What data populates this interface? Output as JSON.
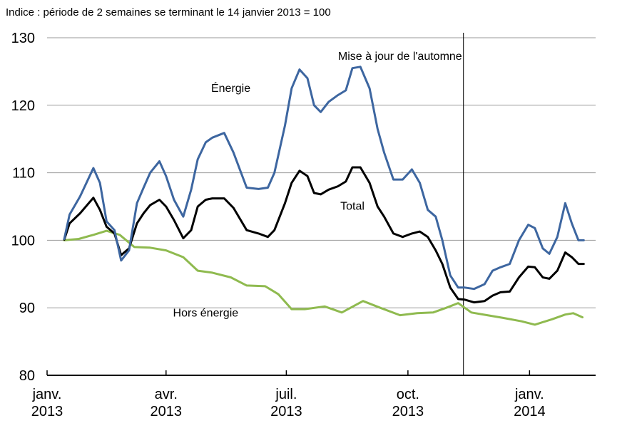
{
  "chart_data": {
    "type": "line",
    "subtitle": "Indice : période de 2 semaines se terminant le 14 janvier 2013 = 100",
    "ylim": [
      80,
      130
    ],
    "yticks": [
      80,
      90,
      100,
      110,
      120,
      130
    ],
    "grid": true,
    "xlim": [
      "2013-01-01",
      "2014-02-20"
    ],
    "xticks": [
      {
        "date": "2013-01-01",
        "line1": "janv.",
        "line2": "2013"
      },
      {
        "date": "2013-04-01",
        "line1": "avr.",
        "line2": "2013"
      },
      {
        "date": "2013-07-01",
        "line1": "juil.",
        "line2": "2013"
      },
      {
        "date": "2013-10-01",
        "line1": "oct.",
        "line2": "2013"
      },
      {
        "date": "2014-01-01",
        "line1": "janv.",
        "line2": "2014"
      }
    ],
    "vline": {
      "date": "2013-11-12",
      "label": "Mise à jour de l'automne"
    },
    "series": [
      {
        "name": "Énergie",
        "color": "#3d66a0",
        "x": [
          "2013-01-14",
          "2013-01-18",
          "2013-01-26",
          "2013-02-05",
          "2013-02-10",
          "2013-02-15",
          "2013-02-21",
          "2013-02-26",
          "2013-03-04",
          "2013-03-10",
          "2013-03-15",
          "2013-03-20",
          "2013-03-27",
          "2013-04-01",
          "2013-04-07",
          "2013-04-14",
          "2013-04-20",
          "2013-04-25",
          "2013-05-01",
          "2013-05-06",
          "2013-05-15",
          "2013-05-22",
          "2013-06-01",
          "2013-06-10",
          "2013-06-17",
          "2013-06-22",
          "2013-06-30",
          "2013-07-05",
          "2013-07-11",
          "2013-07-17",
          "2013-07-22",
          "2013-07-27",
          "2013-08-02",
          "2013-08-09",
          "2013-08-15",
          "2013-08-20",
          "2013-08-26",
          "2013-09-02",
          "2013-09-08",
          "2013-09-13",
          "2013-09-20",
          "2013-09-27",
          "2013-10-04",
          "2013-10-10",
          "2013-10-16",
          "2013-10-22",
          "2013-10-27",
          "2013-11-02",
          "2013-11-08",
          "2013-11-13",
          "2013-11-20",
          "2013-11-28",
          "2013-12-04",
          "2013-12-10",
          "2013-12-17",
          "2013-12-24",
          "2013-12-31",
          "2014-01-05",
          "2014-01-11",
          "2014-01-16",
          "2014-01-22",
          "2014-01-28",
          "2014-02-02",
          "2014-02-07",
          "2014-02-11"
        ],
        "values": [
          100.2,
          103.8,
          106.5,
          110.7,
          108.5,
          102.8,
          101.5,
          97.0,
          98.5,
          105.5,
          107.8,
          110.0,
          111.7,
          109.5,
          106.0,
          103.5,
          107.5,
          112.0,
          114.5,
          115.2,
          115.9,
          113.0,
          107.8,
          107.6,
          107.8,
          110.0,
          117.0,
          122.5,
          125.3,
          124.0,
          120.0,
          119.0,
          120.5,
          121.5,
          122.2,
          125.5,
          125.7,
          122.5,
          116.5,
          113.0,
          109.0,
          109.0,
          110.5,
          108.5,
          104.5,
          103.5,
          100.0,
          94.8,
          93.0,
          93.0,
          92.8,
          93.5,
          95.5,
          96.0,
          96.5,
          100.0,
          102.3,
          101.8,
          98.8,
          98.0,
          100.5,
          105.5,
          102.5,
          100.0,
          100.0
        ]
      },
      {
        "name": "Total",
        "color": "#000000",
        "x": [
          "2013-01-14",
          "2013-01-18",
          "2013-01-26",
          "2013-02-05",
          "2013-02-10",
          "2013-02-15",
          "2013-02-21",
          "2013-02-26",
          "2013-03-04",
          "2013-03-10",
          "2013-03-15",
          "2013-03-20",
          "2013-03-27",
          "2013-04-01",
          "2013-04-07",
          "2013-04-14",
          "2013-04-20",
          "2013-04-25",
          "2013-05-01",
          "2013-05-06",
          "2013-05-15",
          "2013-05-22",
          "2013-06-01",
          "2013-06-10",
          "2013-06-17",
          "2013-06-22",
          "2013-06-30",
          "2013-07-05",
          "2013-07-11",
          "2013-07-17",
          "2013-07-22",
          "2013-07-27",
          "2013-08-02",
          "2013-08-09",
          "2013-08-15",
          "2013-08-20",
          "2013-08-26",
          "2013-09-02",
          "2013-09-08",
          "2013-09-13",
          "2013-09-20",
          "2013-09-27",
          "2013-10-04",
          "2013-10-10",
          "2013-10-16",
          "2013-10-22",
          "2013-10-27",
          "2013-11-02",
          "2013-11-08",
          "2013-11-13",
          "2013-11-20",
          "2013-11-28",
          "2013-12-04",
          "2013-12-10",
          "2013-12-17",
          "2013-12-24",
          "2013-12-31",
          "2014-01-05",
          "2014-01-11",
          "2014-01-16",
          "2014-01-22",
          "2014-01-28",
          "2014-02-02",
          "2014-02-07",
          "2014-02-11"
        ],
        "values": [
          100.1,
          102.5,
          104.0,
          106.3,
          104.5,
          102.0,
          101.0,
          97.8,
          98.8,
          102.5,
          104.0,
          105.2,
          106.0,
          105.0,
          103.0,
          100.3,
          101.5,
          105.0,
          106.0,
          106.2,
          106.2,
          104.8,
          101.5,
          101.0,
          100.5,
          101.5,
          105.5,
          108.5,
          110.3,
          109.5,
          107.0,
          106.8,
          107.5,
          108.0,
          108.7,
          110.8,
          110.8,
          108.5,
          105.0,
          103.5,
          101.0,
          100.5,
          101.0,
          101.3,
          100.5,
          98.5,
          96.5,
          93.0,
          91.3,
          91.2,
          90.8,
          91.0,
          91.8,
          92.3,
          92.4,
          94.5,
          96.1,
          96.0,
          94.5,
          94.3,
          95.5,
          98.2,
          97.5,
          96.5,
          96.5
        ]
      },
      {
        "name": "Hors énergie",
        "color": "#8fba4f",
        "x": [
          "2013-01-14",
          "2013-01-25",
          "2013-02-05",
          "2013-02-15",
          "2013-02-25",
          "2013-03-08",
          "2013-03-20",
          "2013-04-01",
          "2013-04-14",
          "2013-04-25",
          "2013-05-06",
          "2013-05-20",
          "2013-06-01",
          "2013-06-15",
          "2013-06-25",
          "2013-07-05",
          "2013-07-15",
          "2013-07-30",
          "2013-08-12",
          "2013-08-28",
          "2013-09-10",
          "2013-09-25",
          "2013-10-08",
          "2013-10-20",
          "2013-10-30",
          "2013-11-08",
          "2013-11-18",
          "2013-11-30",
          "2013-12-12",
          "2013-12-26",
          "2014-01-05",
          "2014-01-18",
          "2014-01-28",
          "2014-02-03",
          "2014-02-10"
        ],
        "values": [
          100.0,
          100.2,
          100.8,
          101.4,
          100.8,
          99.0,
          98.9,
          98.5,
          97.5,
          95.5,
          95.2,
          94.5,
          93.3,
          93.2,
          92.0,
          89.8,
          89.8,
          90.2,
          89.3,
          91.0,
          90.0,
          88.9,
          89.2,
          89.3,
          90.0,
          90.7,
          89.3,
          88.9,
          88.5,
          88.0,
          87.5,
          88.3,
          89.0,
          89.2,
          88.6
        ]
      }
    ],
    "labels": [
      {
        "text": "Énergie",
        "series": "Énergie",
        "date": "2013-05-20",
        "value": 122.0
      },
      {
        "text": "Total",
        "series": "Total",
        "date": "2013-08-20",
        "value": 104.5
      },
      {
        "text": "Hors énergie",
        "series": "Hors énergie",
        "date": "2013-05-01",
        "value": 88.7
      }
    ]
  }
}
